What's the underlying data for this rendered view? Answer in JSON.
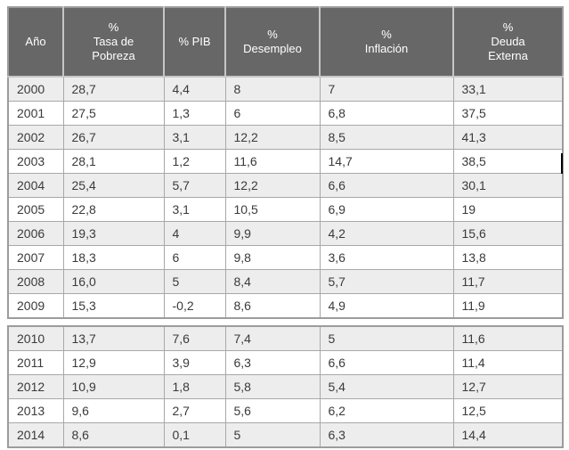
{
  "table": {
    "headers": [
      {
        "key": "ano",
        "label": "Año"
      },
      {
        "key": "tasa-pobreza",
        "label": "%\nTasa de\nPobreza"
      },
      {
        "key": "pib",
        "label": "% PIB"
      },
      {
        "key": "desempleo",
        "label": "%\nDesempleo"
      },
      {
        "key": "inflacion",
        "label": "%\nInflación"
      },
      {
        "key": "deuda-externa",
        "label": "%\nDeuda\nExterna"
      }
    ],
    "sections": [
      {
        "rows": [
          [
            "2000",
            "28,7",
            "4,4",
            "8",
            "7",
            "33,1"
          ],
          [
            "2001",
            "27,5",
            "1,3",
            "6",
            "6,8",
            "37,5"
          ],
          [
            "2002",
            "26,7",
            "3,1",
            "12,2",
            "8,5",
            "41,3"
          ],
          [
            "2003",
            "28,1",
            "1,2",
            "11,6",
            "14,7",
            "38,5"
          ],
          [
            "2004",
            "25,4",
            "5,7",
            "12,2",
            "6,6",
            "30,1"
          ],
          [
            "2005",
            "22,8",
            "3,1",
            "10,5",
            "6,9",
            "19"
          ],
          [
            "2006",
            "19,3",
            "4",
            "9,9",
            "4,2",
            "15,6"
          ],
          [
            "2007",
            "18,3",
            "6",
            "9,8",
            "3,6",
            "13,8"
          ],
          [
            "2008",
            "16,0",
            "5",
            "8,4",
            "5,7",
            "11,7"
          ],
          [
            "2009",
            "15,3",
            "-0,2",
            "8,6",
            "4,9",
            "11,9"
          ]
        ]
      },
      {
        "rows": [
          [
            "2010",
            "13,7",
            "7,6",
            "7,4",
            "5",
            "11,6"
          ],
          [
            "2011",
            "12,9",
            "3,9",
            "6,3",
            "6,6",
            "11,4"
          ],
          [
            "2012",
            "10,9",
            "1,8",
            "5,8",
            "5,4",
            "12,7"
          ],
          [
            "2013",
            "9,6",
            "2,7",
            "5,6",
            "6,2",
            "12,5"
          ],
          [
            "2014",
            "8,6",
            "0,1",
            "5",
            "6,3",
            "14,4"
          ]
        ]
      }
    ],
    "colors": {
      "header_bg": "#676767",
      "header_text": "#ffffff",
      "header_divider": "#c6c6c6",
      "row_bg": "#ffffff",
      "row_alt_bg": "#ededed",
      "border_outer": "#9c9c9c",
      "border_inner": "#a8a8a8",
      "cell_text": "#3a3a3a"
    }
  }
}
